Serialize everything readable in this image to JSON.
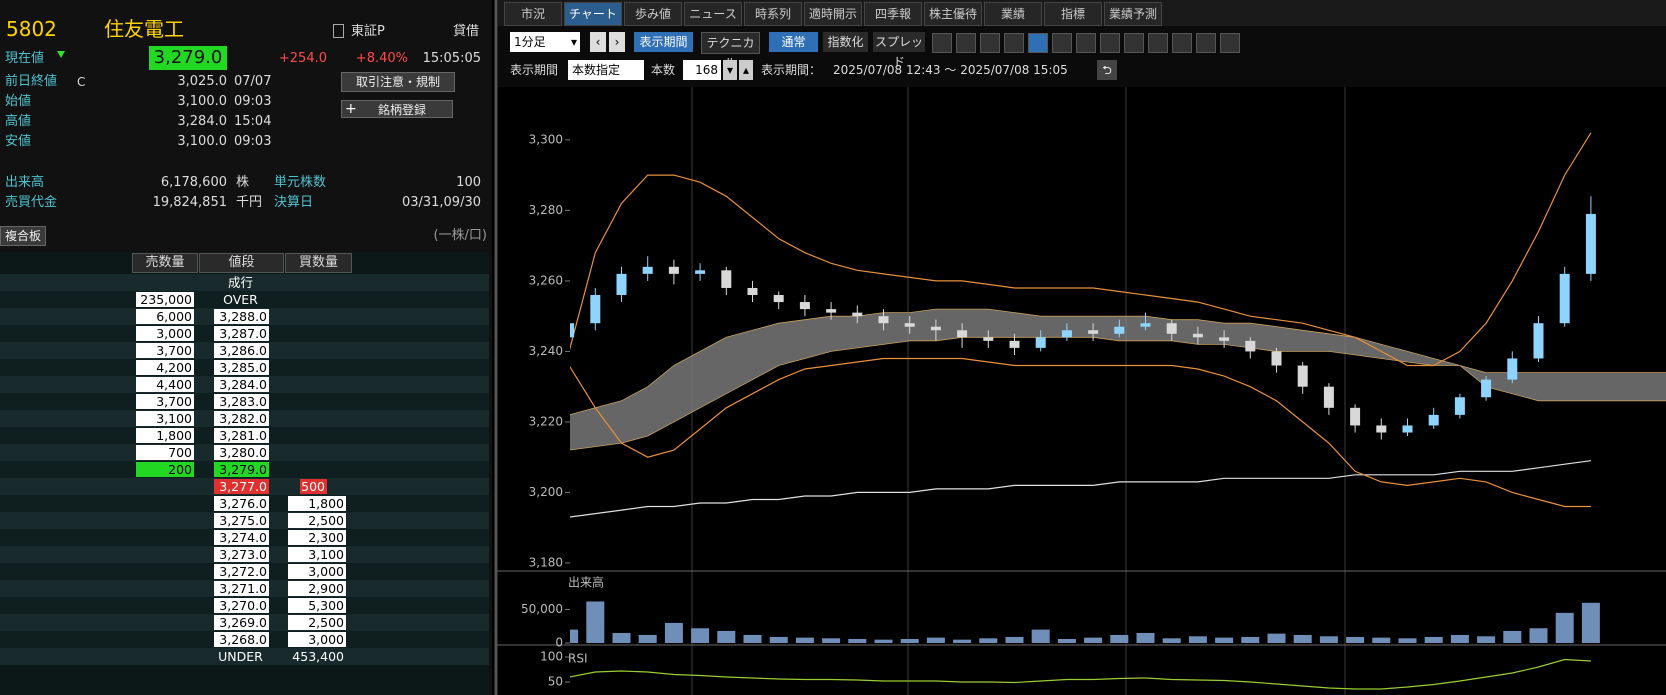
{
  "quote": {
    "code": "5802",
    "name": "住友電工",
    "market": "東証P",
    "margin": "貸借",
    "current": {
      "label": "現在値",
      "price": "3,279.0",
      "change": "+254.0",
      "change_pct": "+8.40%",
      "time": "15:05:05"
    },
    "prev_close": {
      "label": "前日終値",
      "flag": "C",
      "price": "3,025.0",
      "date": "07/07"
    },
    "open": {
      "label": "始値",
      "price": "3,100.0",
      "time": "09:03"
    },
    "high": {
      "label": "高値",
      "price": "3,284.0",
      "time": "15:04"
    },
    "low": {
      "label": "安値",
      "price": "3,100.0",
      "time": "09:03"
    },
    "volume": {
      "label": "出来高",
      "value": "6,178,600",
      "unit": "株"
    },
    "turnover": {
      "label": "売買代金",
      "value": "19,824,851",
      "unit": "千円"
    },
    "unit_shares": {
      "label": "単元株数",
      "value": "100"
    },
    "fiscal": {
      "label": "決算日",
      "value": "03/31,09/30"
    },
    "buttons": [
      "取引注意・規制",
      "銘柄登録"
    ]
  },
  "board": {
    "title": "複合板",
    "unit": "(一株/口)",
    "columns": [
      "売数量",
      "値段",
      "買数量"
    ],
    "rows": [
      [
        null,
        "成行",
        null
      ],
      [
        "235,000",
        "OVER",
        null
      ],
      [
        "6,000",
        "3,288.0",
        null
      ],
      [
        "3,000",
        "3,287.0",
        null
      ],
      [
        "3,700",
        "3,286.0",
        null
      ],
      [
        "4,200",
        "3,285.0",
        null
      ],
      [
        "4,400",
        "3,284.0",
        null
      ],
      [
        "3,700",
        "3,283.0",
        null
      ],
      [
        "3,100",
        "3,282.0",
        null
      ],
      [
        "1,800",
        "3,281.0",
        null
      ],
      [
        "700",
        "3,280.0",
        null
      ],
      [
        "200",
        "3,279.0",
        null
      ],
      [
        null,
        "3,277.0",
        "500"
      ],
      [
        null,
        "3,276.0",
        "1,800"
      ],
      [
        null,
        "3,275.0",
        "2,500"
      ],
      [
        null,
        "3,274.0",
        "2,300"
      ],
      [
        null,
        "3,273.0",
        "3,100"
      ],
      [
        null,
        "3,272.0",
        "3,000"
      ],
      [
        null,
        "3,271.0",
        "2,900"
      ],
      [
        null,
        "3,270.0",
        "5,300"
      ],
      [
        null,
        "3,269.0",
        "2,500"
      ],
      [
        null,
        "3,268.0",
        "3,000"
      ],
      [
        null,
        "UNDER",
        "453,400"
      ]
    ]
  },
  "tabs": [
    "市況",
    "チャート",
    "歩み値",
    "ニュース",
    "時系列",
    "適時開示",
    "四季報",
    "株主優待",
    "業績",
    "指標",
    "業績予測"
  ],
  "toolbar": {
    "interval": "1分足",
    "period_button": "表示期間",
    "technical": "テクニカル",
    "modes": [
      "通常",
      "指数化",
      "スプレッド"
    ],
    "period_label": "表示期間",
    "count_mode": "本数指定",
    "count_label": "本数",
    "count": "168",
    "range_label": "表示期間：",
    "range": "2025/07/08 12:43 ～ 2025/07/08 15:05"
  },
  "chart_data": {
    "type": "candlestick",
    "up_color": "#8fd4ff",
    "down_color": "#d8d8d8",
    "ylim": [
      3178,
      3315
    ],
    "yticks": [
      {
        "value": 3180,
        "label": "3,180"
      },
      {
        "value": 3200,
        "label": "3,200"
      },
      {
        "value": 3220,
        "label": "3,220"
      },
      {
        "value": 3240,
        "label": "3,240"
      },
      {
        "value": 3260,
        "label": "3,260"
      },
      {
        "value": 3280,
        "label": "3,280"
      },
      {
        "value": 3300,
        "label": "3,300"
      }
    ],
    "ohlc": [
      [
        3244,
        3250,
        3242,
        3248
      ],
      [
        3248,
        3258,
        3246,
        3256
      ],
      [
        3256,
        3264,
        3254,
        3262
      ],
      [
        3262,
        3267,
        3260,
        3264
      ],
      [
        3264,
        3266,
        3259,
        3262
      ],
      [
        3262,
        3265,
        3260,
        3263
      ],
      [
        3263,
        3264,
        3256,
        3258
      ],
      [
        3258,
        3260,
        3254,
        3256
      ],
      [
        3256,
        3257,
        3252,
        3254
      ],
      [
        3254,
        3256,
        3250,
        3252
      ],
      [
        3252,
        3254,
        3249,
        3251
      ],
      [
        3251,
        3253,
        3248,
        3250
      ],
      [
        3250,
        3252,
        3246,
        3248
      ],
      [
        3248,
        3250,
        3245,
        3247
      ],
      [
        3247,
        3249,
        3243,
        3246
      ],
      [
        3246,
        3248,
        3241,
        3244
      ],
      [
        3244,
        3246,
        3241,
        3243
      ],
      [
        3243,
        3245,
        3239,
        3241
      ],
      [
        3241,
        3246,
        3240,
        3244
      ],
      [
        3244,
        3248,
        3243,
        3246
      ],
      [
        3246,
        3248,
        3243,
        3245
      ],
      [
        3245,
        3249,
        3244,
        3247
      ],
      [
        3247,
        3251,
        3246,
        3248
      ],
      [
        3248,
        3249,
        3243,
        3245
      ],
      [
        3245,
        3247,
        3242,
        3244
      ],
      [
        3244,
        3246,
        3241,
        3243
      ],
      [
        3243,
        3244,
        3238,
        3240
      ],
      [
        3240,
        3241,
        3234,
        3236
      ],
      [
        3236,
        3237,
        3228,
        3230
      ],
      [
        3230,
        3231,
        3222,
        3224
      ],
      [
        3224,
        3225,
        3217,
        3219
      ],
      [
        3219,
        3221,
        3215,
        3217
      ],
      [
        3217,
        3221,
        3216,
        3219
      ],
      [
        3219,
        3224,
        3218,
        3222
      ],
      [
        3222,
        3228,
        3221,
        3227
      ],
      [
        3227,
        3233,
        3226,
        3232
      ],
      [
        3232,
        3240,
        3231,
        3238
      ],
      [
        3238,
        3250,
        3237,
        3248
      ],
      [
        3248,
        3264,
        3247,
        3262
      ],
      [
        3262,
        3284,
        3260,
        3279
      ]
    ],
    "cloud": {
      "color": "#808080",
      "upper": [
        3222,
        3224,
        3226,
        3230,
        3236,
        3240,
        3244,
        3246,
        3248,
        3249,
        3250,
        3250,
        3251,
        3251,
        3252,
        3252,
        3252,
        3251,
        3250,
        3250,
        3250,
        3250,
        3250,
        3249,
        3249,
        3248,
        3248,
        3247,
        3246,
        3245,
        3244,
        3242,
        3240,
        3238,
        3236,
        3234,
        3234,
        3234,
        3234,
        3234,
        3234,
        3234,
        3234
      ],
      "lower": [
        3212,
        3213,
        3214,
        3216,
        3220,
        3224,
        3228,
        3232,
        3236,
        3238,
        3240,
        3241,
        3242,
        3243,
        3243,
        3244,
        3244,
        3244,
        3244,
        3244,
        3244,
        3243,
        3243,
        3243,
        3242,
        3242,
        3241,
        3240,
        3240,
        3240,
        3239,
        3238,
        3237,
        3236,
        3236,
        3230,
        3228,
        3226,
        3226,
        3226,
        3226,
        3226,
        3226
      ]
    },
    "series": [
      {
        "color": "#e0e0e0",
        "values": [
          3193,
          3194,
          3195,
          3196,
          3196,
          3197,
          3197,
          3198,
          3198,
          3199,
          3199,
          3200,
          3200,
          3200,
          3201,
          3201,
          3201,
          3202,
          3202,
          3202,
          3202,
          3203,
          3203,
          3203,
          3203,
          3204,
          3204,
          3204,
          3204,
          3204,
          3205,
          3205,
          3205,
          3205,
          3206,
          3206,
          3206,
          3207,
          3208,
          3209
        ]
      },
      {
        "color": "#e8903a",
        "values": [
          3240,
          3268,
          3282,
          3290,
          3290,
          3288,
          3284,
          3278,
          3272,
          3268,
          3265,
          3263,
          3262,
          3261,
          3260,
          3260,
          3259,
          3258,
          3258,
          3258,
          3258,
          3257,
          3256,
          3255,
          3254,
          3252,
          3250,
          3249,
          3248,
          3246,
          3244,
          3240,
          3236,
          3236,
          3240,
          3248,
          3260,
          3274,
          3290,
          3302
        ]
      },
      {
        "color": "#e8903a",
        "values": [
          3236,
          3224,
          3214,
          3210,
          3212,
          3218,
          3224,
          3228,
          3232,
          3235,
          3236,
          3237,
          3238,
          3238,
          3238,
          3238,
          3237,
          3236,
          3236,
          3236,
          3236,
          3236,
          3236,
          3236,
          3235,
          3233,
          3230,
          3226,
          3220,
          3214,
          3206,
          3203,
          3202,
          3203,
          3204,
          3203,
          3200,
          3198,
          3196,
          3196
        ]
      }
    ],
    "volume": {
      "label": "出来高",
      "color": "#6f8fb8",
      "ylim": [
        0,
        103000
      ],
      "yticks": [
        0,
        {
          "value": 50000,
          "label": "50,000"
        }
      ],
      "values": [
        20000,
        62000,
        15000,
        12000,
        30000,
        22000,
        18000,
        12000,
        9000,
        8000,
        7000,
        6000,
        5000,
        6000,
        8000,
        5000,
        7000,
        9000,
        20000,
        6000,
        8000,
        12000,
        15000,
        7000,
        10000,
        8000,
        9000,
        14000,
        12000,
        10000,
        9000,
        8000,
        7000,
        9000,
        12000,
        10000,
        18000,
        22000,
        45000,
        60000
      ]
    },
    "rsi": {
      "label": "RSI",
      "color": "#9acd32",
      "ylim": [
        24,
        118
      ],
      "yticks": [
        50,
        100
      ],
      "values": [
        60,
        70,
        72,
        70,
        65,
        63,
        60,
        58,
        56,
        55,
        55,
        54,
        52,
        52,
        52,
        50,
        50,
        49,
        52,
        55,
        55,
        57,
        58,
        55,
        54,
        53,
        50,
        46,
        42,
        38,
        36,
        36,
        40,
        45,
        52,
        60,
        68,
        80,
        95,
        92
      ]
    }
  }
}
